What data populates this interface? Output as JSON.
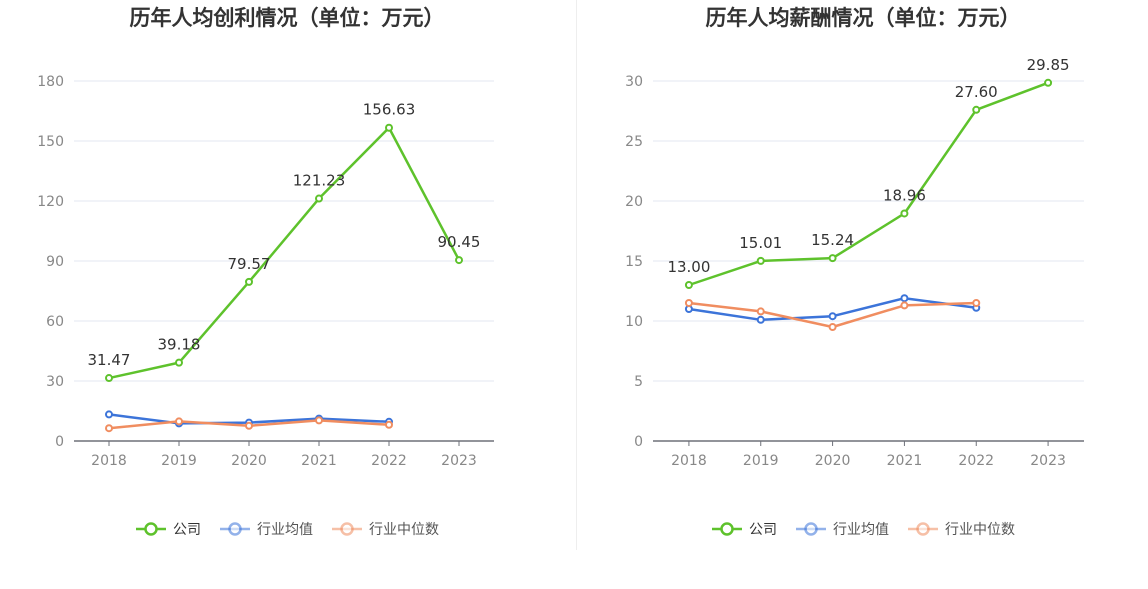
{
  "chart_data": [
    {
      "type": "line",
      "title": "历年人均创利情况（单位：万元）",
      "categories": [
        "2018",
        "2019",
        "2020",
        "2021",
        "2022",
        "2023"
      ],
      "ylim": [
        0,
        180
      ],
      "yticks": [
        "0",
        "30",
        "60",
        "90",
        "120",
        "150",
        "180"
      ],
      "grid": true,
      "legend_position": "bottom",
      "series": [
        {
          "name": "公司",
          "color": "#5ec22c",
          "values": [
            31.47,
            39.18,
            79.57,
            121.23,
            156.63,
            90.45
          ],
          "labels": [
            "31.47",
            "39.18",
            "79.57",
            "121.23",
            "156.63",
            "90.45"
          ]
        },
        {
          "name": "行业均值",
          "color": "#3c74d9",
          "values": [
            13.3,
            8.8,
            9.2,
            11.2,
            9.6,
            null
          ]
        },
        {
          "name": "行业中位数",
          "color": "#f08d60",
          "values": [
            6.4,
            9.8,
            7.6,
            10.3,
            8.1,
            null
          ]
        }
      ]
    },
    {
      "type": "line",
      "title": "历年人均薪酬情况（单位：万元）",
      "categories": [
        "2018",
        "2019",
        "2020",
        "2021",
        "2022",
        "2023"
      ],
      "ylim": [
        0,
        30
      ],
      "yticks": [
        "0",
        "5",
        "10",
        "15",
        "20",
        "25",
        "30"
      ],
      "grid": true,
      "legend_position": "bottom",
      "series": [
        {
          "name": "公司",
          "color": "#5ec22c",
          "values": [
            13.0,
            15.01,
            15.24,
            18.96,
            27.6,
            29.85
          ],
          "labels": [
            "13.00",
            "15.01",
            "15.24",
            "18.96",
            "27.60",
            "29.85"
          ]
        },
        {
          "name": "行业均值",
          "color": "#3c74d9",
          "values": [
            11.0,
            10.1,
            10.4,
            11.9,
            11.1,
            null
          ]
        },
        {
          "name": "行业中位数",
          "color": "#f08d60",
          "values": [
            11.5,
            10.8,
            9.5,
            11.3,
            11.5,
            null
          ]
        }
      ]
    }
  ]
}
